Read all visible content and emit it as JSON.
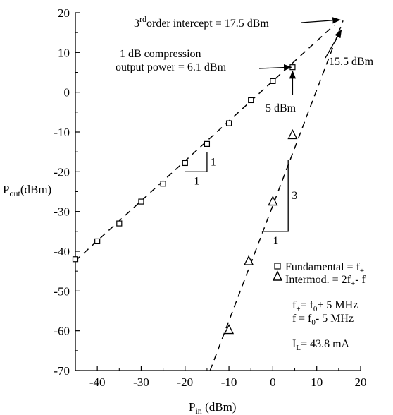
{
  "chart_data": {
    "type": "scatter",
    "title": "",
    "xlabel": {
      "main": "P",
      "sub": "in",
      "rest": " (dBm)"
    },
    "ylabel": {
      "main": "P",
      "sub": "out",
      "rest": "(dBm)"
    },
    "xlim": [
      -45,
      20
    ],
    "ylim": [
      -70,
      20
    ],
    "x_ticks": [
      -40,
      -30,
      -20,
      -10,
      0,
      10,
      20
    ],
    "y_ticks": [
      20,
      10,
      0,
      -10,
      -20,
      -30,
      -40,
      -50,
      -60,
      -70
    ],
    "series": [
      {
        "name": "Fundamental = f+",
        "marker": "square",
        "points": [
          [
            -45,
            -42
          ],
          [
            -40,
            -37.5
          ],
          [
            -35,
            -33
          ],
          [
            -30,
            -27.5
          ],
          [
            -25,
            -23
          ],
          [
            -20,
            -17.8
          ],
          [
            -15,
            -13
          ],
          [
            -10,
            -7.8
          ],
          [
            -5,
            -2
          ],
          [
            0,
            2.8
          ],
          [
            4.5,
            6.3
          ]
        ]
      },
      {
        "name": "Intermod. = 2f+- f-",
        "marker": "triangle",
        "points": [
          [
            -10,
            -59.8
          ],
          [
            -5.5,
            -42.5
          ],
          [
            0,
            -27.5
          ],
          [
            4.5,
            -10.8
          ]
        ]
      }
    ],
    "fit_lines": [
      {
        "series": "fundamental",
        "from": [
          -45,
          -42.4
        ],
        "to": [
          14,
          16.9
        ]
      },
      {
        "series": "intermod",
        "from": [
          -14.3,
          -70
        ],
        "to": [
          16,
          18
        ]
      }
    ],
    "slope_marks": [
      {
        "corner": [
          -15,
          -20
        ],
        "run": 5,
        "rise": 5,
        "run_label": "1",
        "rise_label": "1"
      },
      {
        "corner": [
          3.5,
          -35
        ],
        "run": 6,
        "rise": 18,
        "run_label": "1",
        "rise_label": "3"
      }
    ],
    "annotations": {
      "intercept": {
        "parts": [
          "3",
          "rd",
          "order intercept = 17.5 dBm"
        ]
      },
      "intercept_value": "15.5 dBm",
      "compression_line1": "1 dB compression",
      "compression_line2": "output power = 6.1 dBm",
      "compression_input": "5 dBm"
    },
    "legend": {
      "position": "lower-right",
      "fundamental_label": {
        "main": "Fundamental = f",
        "sub": "+"
      },
      "intermod_label": {
        "main": "Intermod. = 2f",
        "sub1": "+",
        "mid": "- f",
        "sub2": "-"
      }
    },
    "notes": {
      "fplus": {
        "a": "f",
        "a_sub": "+",
        "b": "= f",
        "b_sub": "0",
        "c": "+ 5 MHz"
      },
      "fminus": {
        "a": "f",
        "a_sub": "-",
        "b": "= f",
        "b_sub": "0",
        "c": "- 5 MHz"
      },
      "current": {
        "a": "I",
        "a_sub": "L",
        "b": "= 43.8 mA"
      }
    }
  }
}
